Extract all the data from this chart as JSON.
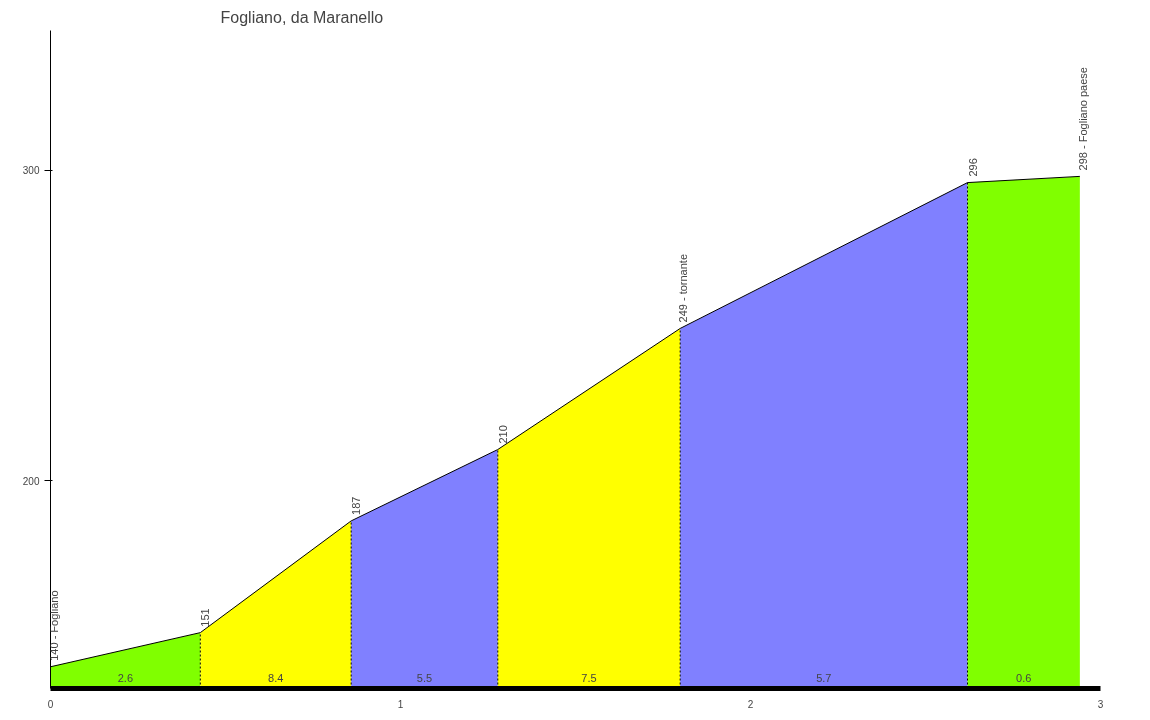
{
  "chart_data": {
    "type": "area",
    "title": "Fogliano, da Maranello",
    "xlim": [
      0,
      3
    ],
    "xticks": [
      0,
      1,
      2,
      3
    ],
    "ylim": [
      133,
      345
    ],
    "yticks": [
      200,
      300
    ],
    "grid": false,
    "line_style": "solid",
    "series": [
      {
        "x": [
          0,
          0.428
        ],
        "values": [
          140,
          151
        ],
        "color": "#80ff00"
      },
      {
        "x": [
          0.428,
          0.859
        ],
        "values": [
          151,
          187
        ],
        "color": "#ffff00"
      },
      {
        "x": [
          0.859,
          1.278
        ],
        "values": [
          187,
          210
        ],
        "color": "#8080ff"
      },
      {
        "x": [
          1.278,
          1.799
        ],
        "values": [
          210,
          249
        ],
        "color": "#ffff00"
      },
      {
        "x": [
          1.799,
          2.62
        ],
        "values": [
          249,
          296
        ],
        "color": "#8080ff"
      },
      {
        "x": [
          2.62,
          2.941
        ],
        "values": [
          296,
          298
        ],
        "color": "#80ff00"
      }
    ],
    "annotations": [
      {
        "text": "140 - Fogliano",
        "x": 0,
        "y": 140
      },
      {
        "text": "151",
        "x": 0.428,
        "y": 151
      },
      {
        "text": "187",
        "x": 0.859,
        "y": 187
      },
      {
        "text": "210",
        "x": 1.278,
        "y": 210
      },
      {
        "text": "249 - tornante",
        "x": 1.799,
        "y": 249
      },
      {
        "text": "296",
        "x": 2.62,
        "y": 296
      },
      {
        "text": "298 - Fogliano paese",
        "x": 2.941,
        "y": 298
      },
      "2.6",
      "8.4",
      "5.5",
      "7.5",
      "5.7",
      "0.6"
    ]
  }
}
